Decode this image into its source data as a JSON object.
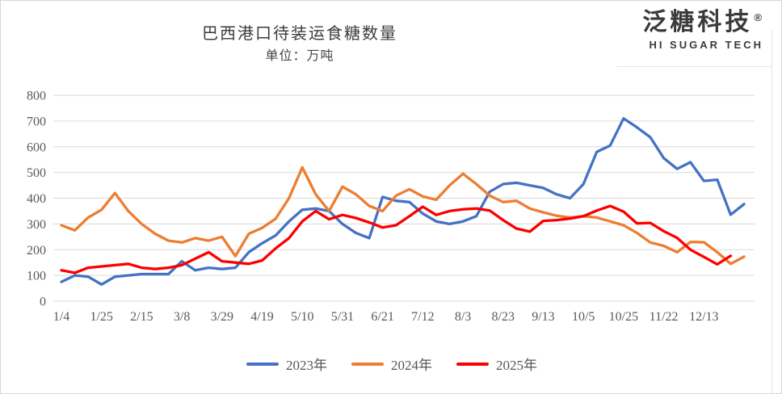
{
  "page": {
    "logo": {
      "brand": "泛糖科技",
      "registered": "®",
      "tagline": "HI SUGAR TECH"
    }
  },
  "chart_data": {
    "type": "line",
    "title": "巴西港口待装运食糖数量",
    "unit_label": "单位：万吨",
    "xlabel": "",
    "ylabel": "",
    "ylim": [
      0,
      800
    ],
    "y_ticks": [
      0,
      100,
      200,
      300,
      400,
      500,
      600,
      700,
      800
    ],
    "grid": "horizontal",
    "legend_position": "bottom",
    "x_points": 52,
    "x_label_every": 3,
    "x_tick_labels": [
      "1/4",
      "1/25",
      "2/15",
      "3/8",
      "3/29",
      "4/19",
      "5/10",
      "5/31",
      "6/21",
      "7/12",
      "8/3",
      "8/23",
      "9/13",
      "10/5",
      "10/25",
      "11/22",
      "12/13"
    ],
    "series": [
      {
        "name": "2023年",
        "color": "#4472C4",
        "values": [
          75,
          100,
          95,
          65,
          95,
          100,
          105,
          105,
          105,
          155,
          120,
          130,
          125,
          130,
          190,
          225,
          255,
          310,
          355,
          360,
          350,
          300,
          265,
          245,
          405,
          390,
          385,
          340,
          310,
          300,
          310,
          330,
          425,
          455,
          460,
          450,
          440,
          415,
          400,
          455,
          580,
          605,
          710,
          675,
          637,
          556,
          514,
          540,
          467,
          472,
          336,
          377
        ]
      },
      {
        "name": "2024年",
        "color": "#ED7D31",
        "values": [
          295,
          275,
          325,
          355,
          420,
          350,
          300,
          262,
          235,
          228,
          245,
          235,
          250,
          175,
          262,
          285,
          320,
          400,
          520,
          415,
          350,
          445,
          415,
          370,
          350,
          410,
          435,
          407,
          394,
          450,
          495,
          455,
          410,
          385,
          390,
          360,
          345,
          332,
          325,
          330,
          325,
          310,
          295,
          265,
          228,
          215,
          190,
          230,
          229,
          190,
          145,
          173
        ]
      },
      {
        "name": "2025年",
        "color": "#FB0000",
        "values": [
          120,
          110,
          130,
          135,
          140,
          145,
          130,
          125,
          130,
          140,
          165,
          190,
          155,
          150,
          145,
          158,
          205,
          245,
          310,
          350,
          318,
          335,
          323,
          306,
          286,
          295,
          330,
          367,
          335,
          350,
          357,
          360,
          352,
          315,
          282,
          270,
          312,
          315,
          321,
          330,
          352,
          370,
          348,
          302,
          304,
          272,
          246,
          200,
          172,
          143,
          176
        ]
      }
    ]
  }
}
